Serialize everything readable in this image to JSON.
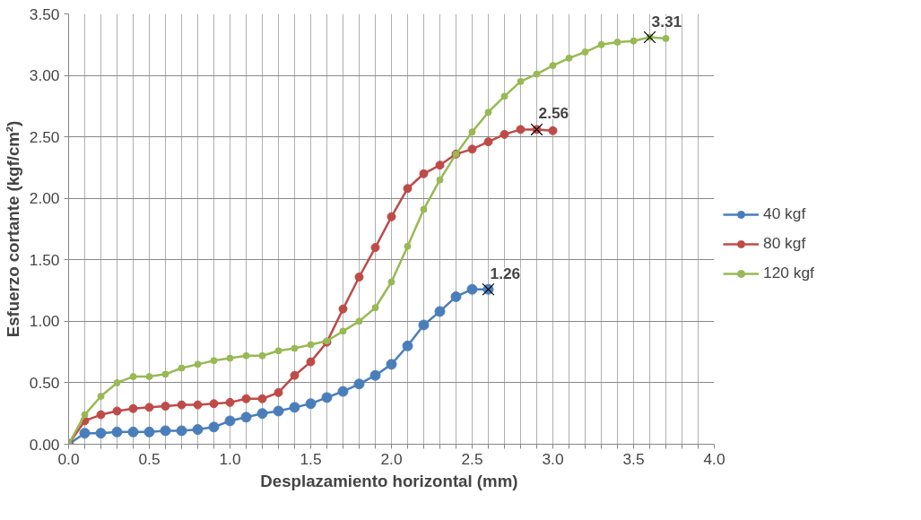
{
  "chart_data": {
    "type": "line",
    "xlabel": "Desplazamiento  horizontal (mm)",
    "ylabel": "Esfuerzo cortante (kgf/cm²)",
    "xlim": [
      0,
      4
    ],
    "ylim": [
      0,
      3.5
    ],
    "xticks": [
      {
        "value": 0,
        "label": "0.0"
      },
      {
        "value": 0.1,
        "label": null
      },
      {
        "value": 0.2,
        "label": null
      },
      {
        "value": 0.3,
        "label": null
      },
      {
        "value": 0.4,
        "label": null
      },
      {
        "value": 0.5,
        "label": "0.5"
      },
      {
        "value": 0.6,
        "label": null
      },
      {
        "value": 0.7,
        "label": null
      },
      {
        "value": 0.8,
        "label": null
      },
      {
        "value": 0.9,
        "label": null
      },
      {
        "value": 1,
        "label": "1.0"
      },
      {
        "value": 1.1,
        "label": null
      },
      {
        "value": 1.2,
        "label": null
      },
      {
        "value": 1.3,
        "label": null
      },
      {
        "value": 1.4,
        "label": null
      },
      {
        "value": 1.5,
        "label": "1.5"
      },
      {
        "value": 1.6,
        "label": null
      },
      {
        "value": 1.7,
        "label": null
      },
      {
        "value": 1.8,
        "label": null
      },
      {
        "value": 1.9,
        "label": null
      },
      {
        "value": 2,
        "label": "2.0"
      },
      {
        "value": 2.1,
        "label": null
      },
      {
        "value": 2.2,
        "label": null
      },
      {
        "value": 2.3,
        "label": null
      },
      {
        "value": 2.4,
        "label": null
      },
      {
        "value": 2.5,
        "label": "2.5"
      },
      {
        "value": 2.6,
        "label": null
      },
      {
        "value": 2.7,
        "label": null
      },
      {
        "value": 2.8,
        "label": null
      },
      {
        "value": 2.9,
        "label": null
      },
      {
        "value": 3,
        "label": "3.0"
      },
      {
        "value": 3.1,
        "label": null
      },
      {
        "value": 3.2,
        "label": null
      },
      {
        "value": 3.3,
        "label": null
      },
      {
        "value": 3.4,
        "label": null
      },
      {
        "value": 3.5,
        "label": "3.5"
      },
      {
        "value": 3.6,
        "label": null
      },
      {
        "value": 3.7,
        "label": null
      },
      {
        "value": 3.8,
        "label": null
      },
      {
        "value": 3.9,
        "label": null
      },
      {
        "value": 4,
        "label": "4.0"
      }
    ],
    "yticks": [
      {
        "value": 0,
        "label": "0.00"
      },
      {
        "value": 0.5,
        "label": "0.50"
      },
      {
        "value": 1,
        "label": "1.00"
      },
      {
        "value": 1.5,
        "label": "1.50"
      },
      {
        "value": 2,
        "label": "2.00"
      },
      {
        "value": 2.5,
        "label": "2.50"
      },
      {
        "value": 3,
        "label": "3.00"
      },
      {
        "value": 3.5,
        "label": "3.50"
      }
    ],
    "grid": true,
    "legend": "right",
    "marker": "circle",
    "line_style": "solid",
    "series": [
      {
        "name": "40 kgf",
        "color": "#4a7ebb",
        "x": [
          0,
          0.1,
          0.2,
          0.3,
          0.4,
          0.5,
          0.6,
          0.7,
          0.8,
          0.9,
          1.0,
          1.1,
          1.2,
          1.3,
          1.4,
          1.5,
          1.6,
          1.7,
          1.8,
          1.9,
          2.0,
          2.1,
          2.2,
          2.3,
          2.4,
          2.5,
          2.6
        ],
        "values": [
          0,
          0.09,
          0.09,
          0.1,
          0.1,
          0.1,
          0.11,
          0.11,
          0.12,
          0.14,
          0.19,
          0.22,
          0.25,
          0.27,
          0.3,
          0.33,
          0.38,
          0.43,
          0.49,
          0.56,
          0.65,
          0.8,
          0.97,
          1.08,
          1.2,
          1.26,
          1.26
        ]
      },
      {
        "name": "80 kgf",
        "color": "#be4b48",
        "x": [
          0,
          0.1,
          0.2,
          0.3,
          0.4,
          0.5,
          0.6,
          0.7,
          0.8,
          0.9,
          1.0,
          1.1,
          1.2,
          1.3,
          1.4,
          1.5,
          1.6,
          1.7,
          1.8,
          1.9,
          2.0,
          2.1,
          2.2,
          2.3,
          2.4,
          2.5,
          2.6,
          2.7,
          2.8,
          2.9,
          3.0
        ],
        "values": [
          0,
          0.19,
          0.24,
          0.27,
          0.29,
          0.3,
          0.31,
          0.32,
          0.32,
          0.33,
          0.34,
          0.37,
          0.37,
          0.42,
          0.56,
          0.67,
          0.83,
          1.1,
          1.36,
          1.6,
          1.85,
          2.08,
          2.2,
          2.27,
          2.36,
          2.4,
          2.46,
          2.52,
          2.56,
          2.56,
          2.55
        ]
      },
      {
        "name": "120 kgf",
        "color": "#98b954",
        "x": [
          0,
          0.1,
          0.2,
          0.3,
          0.4,
          0.5,
          0.6,
          0.7,
          0.8,
          0.9,
          1.0,
          1.1,
          1.2,
          1.3,
          1.4,
          1.5,
          1.6,
          1.7,
          1.8,
          1.9,
          2.0,
          2.1,
          2.2,
          2.3,
          2.4,
          2.5,
          2.6,
          2.7,
          2.8,
          2.9,
          3.0,
          3.1,
          3.2,
          3.3,
          3.4,
          3.5,
          3.6,
          3.7
        ],
        "values": [
          0,
          0.24,
          0.39,
          0.5,
          0.55,
          0.55,
          0.57,
          0.62,
          0.65,
          0.68,
          0.7,
          0.72,
          0.72,
          0.76,
          0.78,
          0.81,
          0.84,
          0.92,
          1.0,
          1.11,
          1.32,
          1.61,
          1.91,
          2.15,
          2.36,
          2.54,
          2.7,
          2.83,
          2.95,
          3.01,
          3.08,
          3.14,
          3.19,
          3.25,
          3.27,
          3.28,
          3.31,
          3.3
        ]
      }
    ],
    "annotations": [
      {
        "text": "1.26",
        "x": 2.6,
        "y": 1.26
      },
      {
        "text": "2.56",
        "x": 2.9,
        "y": 2.56
      },
      {
        "text": "3.31",
        "x": 3.6,
        "y": 3.31
      }
    ]
  }
}
